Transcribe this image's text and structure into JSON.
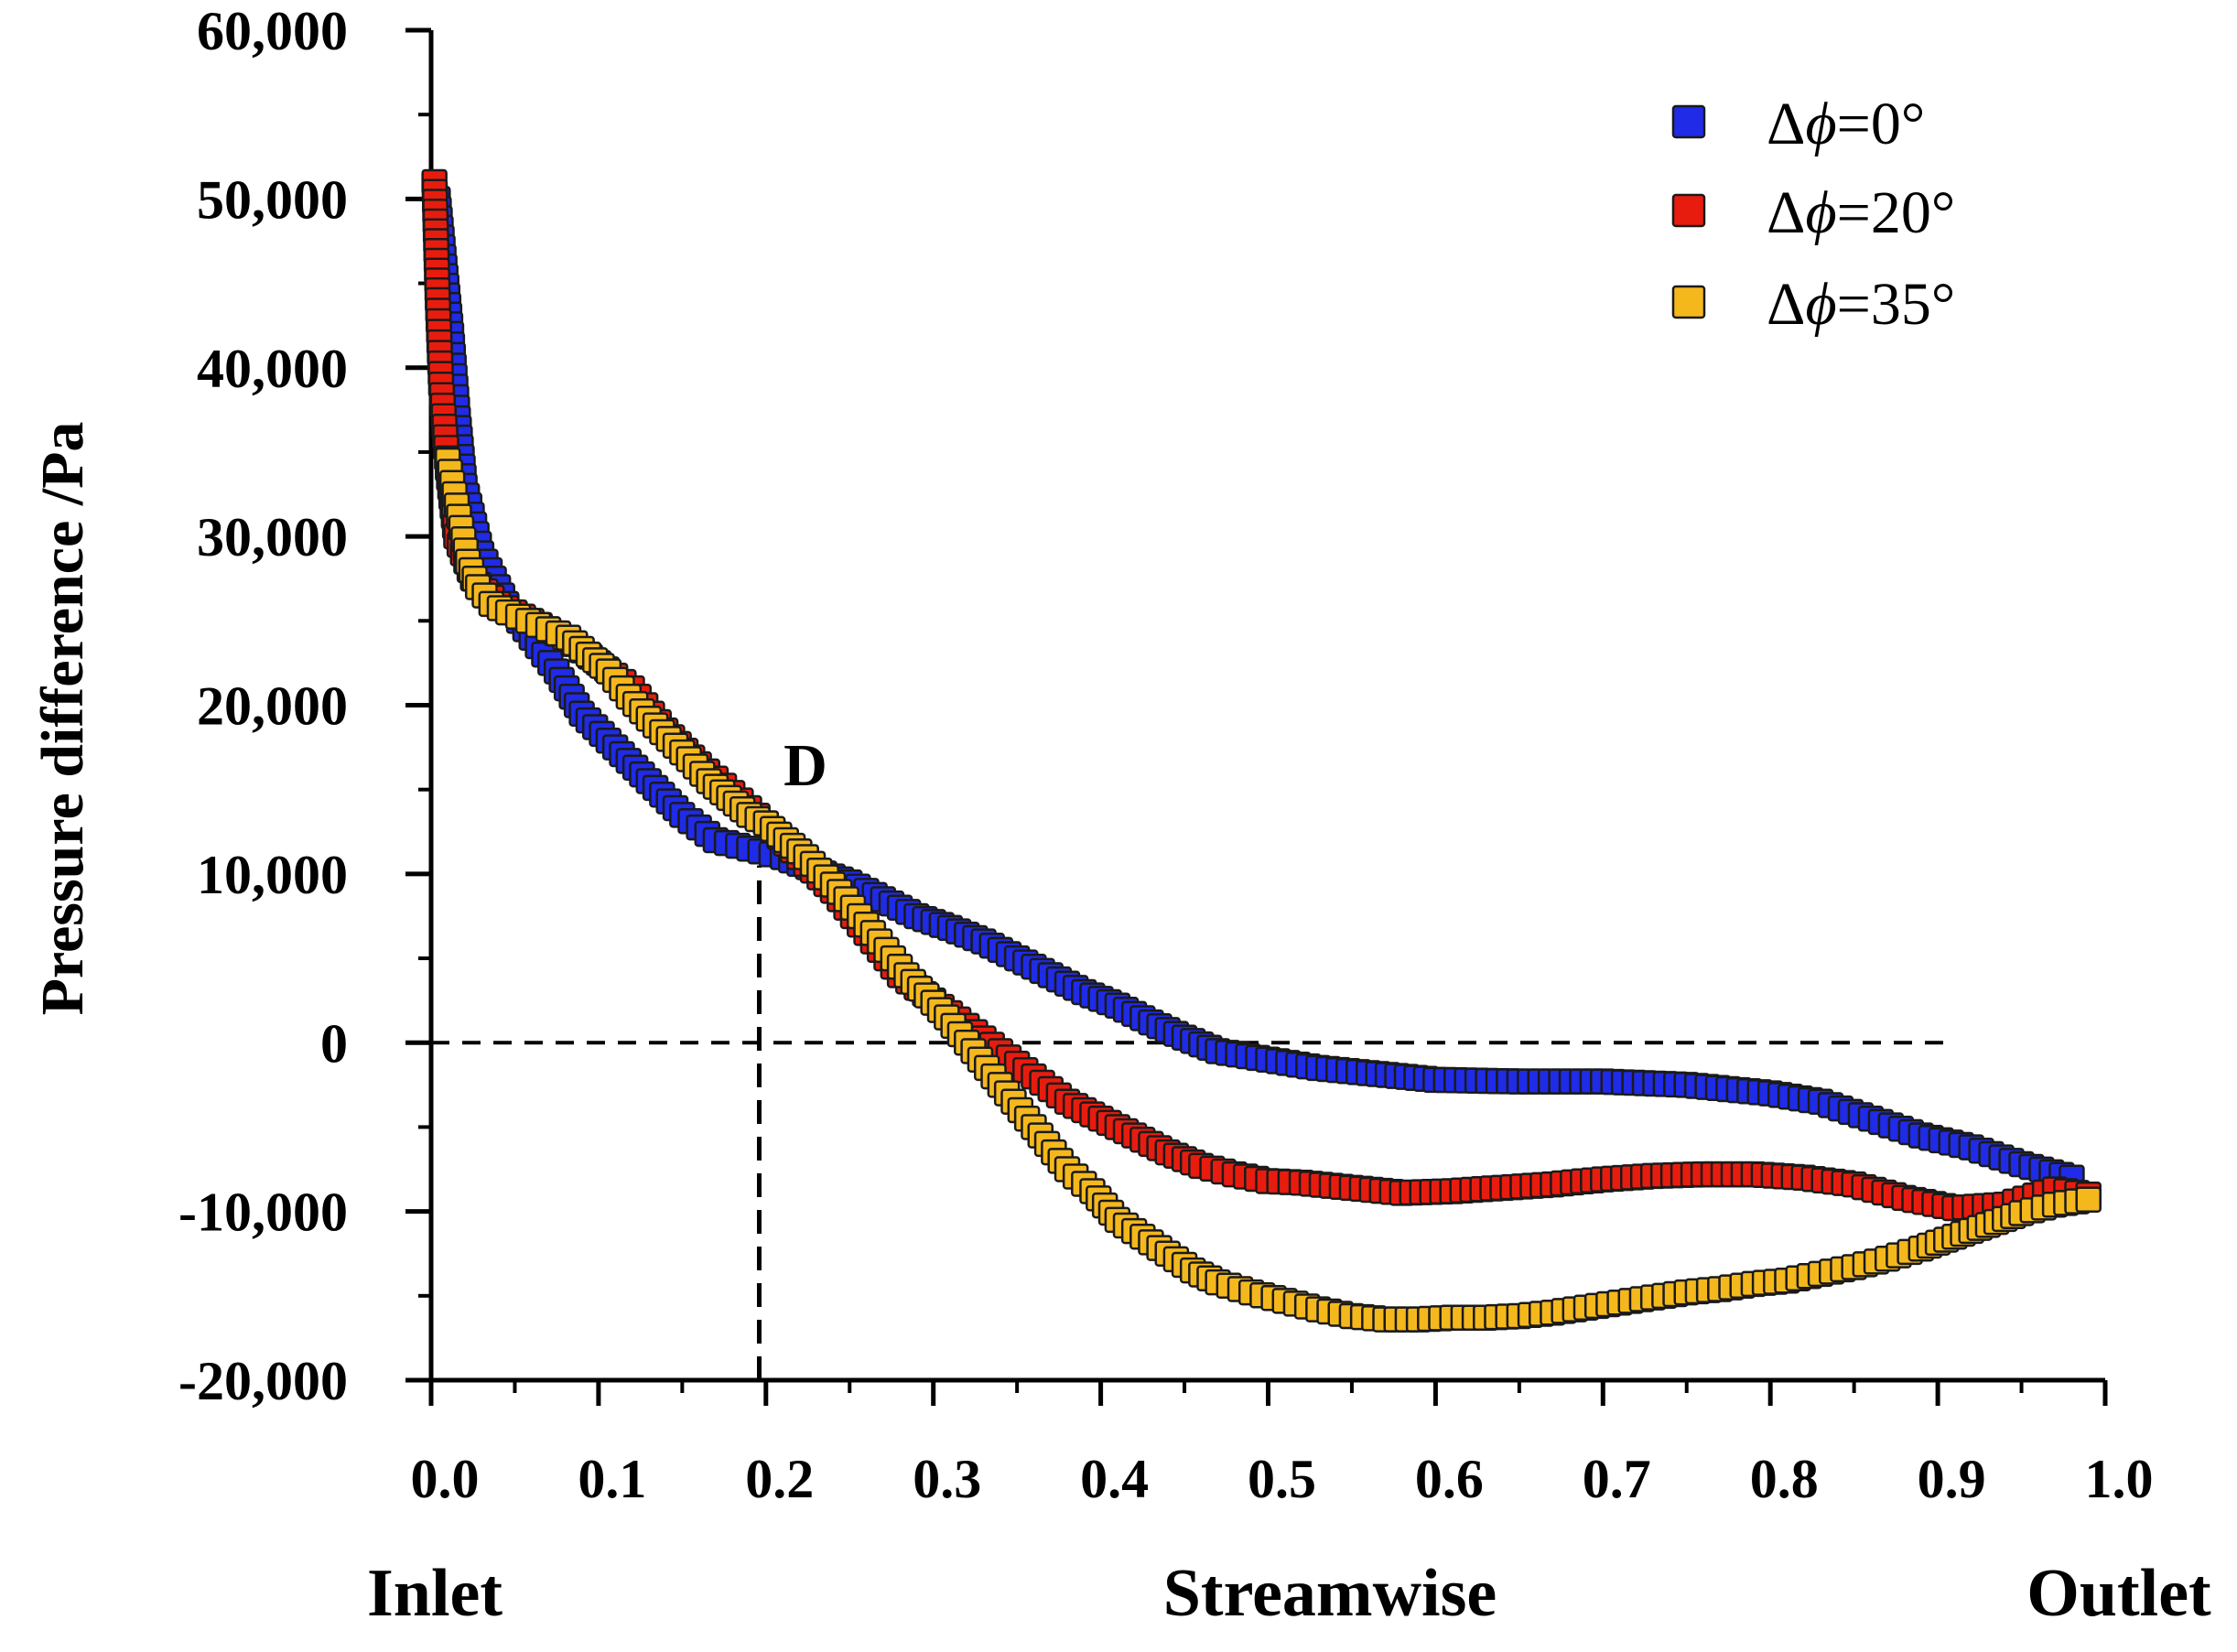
{
  "chart_data": {
    "type": "scatter",
    "title": "",
    "ylabel": "Pressure difference /Pa",
    "xlabel": "Streamwise",
    "x_start_label": "Inlet",
    "x_end_label": "Outlet",
    "xlim": [
      0,
      1.0
    ],
    "ylim": [
      -20000,
      60000
    ],
    "x_ticks": [
      0.0,
      0.1,
      0.2,
      0.3,
      0.4,
      0.5,
      0.6,
      0.7,
      0.8,
      0.9,
      1.0
    ],
    "x_tick_labels": [
      "0.0",
      "0.1",
      "0.2",
      "0.3",
      "0.4",
      "0.5",
      "0.6",
      "0.7",
      "0.8",
      "0.9",
      "1.0"
    ],
    "y_ticks": [
      -20000,
      -10000,
      0,
      10000,
      20000,
      30000,
      40000,
      50000,
      60000
    ],
    "y_tick_labels": [
      "-20,000",
      "-10,000",
      "0",
      "10,000",
      "20,000",
      "30,000",
      "40,000",
      "50,000",
      "60,000"
    ],
    "grid": false,
    "legend_position": "top-right",
    "annotations": [
      {
        "text": "D",
        "x": 0.22,
        "y": 16000
      }
    ],
    "reference_lines": [
      {
        "type": "horizontal",
        "y": 0,
        "x_from": 0.0,
        "x_to": 0.91,
        "style": "dashed"
      },
      {
        "type": "vertical",
        "x": 0.196,
        "y_from": -20000,
        "y_to": 10500,
        "style": "dashed"
      }
    ],
    "series": [
      {
        "name": "Δϕ=0°",
        "legend_prefix": "Δ",
        "legend_symbol": "ϕ",
        "legend_suffix": "=0°",
        "color": "#1f2be6",
        "points": [
          [
            0.004,
            50000
          ],
          [
            0.008,
            46000
          ],
          [
            0.012,
            42000
          ],
          [
            0.016,
            37000
          ],
          [
            0.02,
            33000
          ],
          [
            0.03,
            29000
          ],
          [
            0.045,
            26000
          ],
          [
            0.06,
            24000
          ],
          [
            0.075,
            22000
          ],
          [
            0.09,
            19500
          ],
          [
            0.11,
            17500
          ],
          [
            0.13,
            15500
          ],
          [
            0.15,
            13500
          ],
          [
            0.17,
            12000
          ],
          [
            0.19,
            11500
          ],
          [
            0.21,
            11000
          ],
          [
            0.23,
            10200
          ],
          [
            0.25,
            9500
          ],
          [
            0.27,
            8500
          ],
          [
            0.29,
            7500
          ],
          [
            0.31,
            6800
          ],
          [
            0.33,
            6000
          ],
          [
            0.35,
            5000
          ],
          [
            0.37,
            4000
          ],
          [
            0.39,
            3000
          ],
          [
            0.41,
            2200
          ],
          [
            0.43,
            1200
          ],
          [
            0.45,
            300
          ],
          [
            0.47,
            -500
          ],
          [
            0.5,
            -1000
          ],
          [
            0.53,
            -1500
          ],
          [
            0.56,
            -1800
          ],
          [
            0.6,
            -2200
          ],
          [
            0.65,
            -2300
          ],
          [
            0.7,
            -2300
          ],
          [
            0.75,
            -2500
          ],
          [
            0.8,
            -3000
          ],
          [
            0.83,
            -3500
          ],
          [
            0.86,
            -4500
          ],
          [
            0.89,
            -5500
          ],
          [
            0.92,
            -6200
          ],
          [
            0.95,
            -7200
          ],
          [
            0.98,
            -8000
          ]
        ]
      },
      {
        "name": "Δϕ=20°",
        "legend_prefix": "Δ",
        "legend_symbol": "ϕ",
        "legend_suffix": "=20°",
        "color": "#e81c0e",
        "points": [
          [
            0.002,
            51000
          ],
          [
            0.004,
            44000
          ],
          [
            0.006,
            39000
          ],
          [
            0.01,
            34000
          ],
          [
            0.015,
            30000
          ],
          [
            0.025,
            27500
          ],
          [
            0.04,
            26000
          ],
          [
            0.06,
            25000
          ],
          [
            0.08,
            24000
          ],
          [
            0.1,
            22500
          ],
          [
            0.12,
            21000
          ],
          [
            0.14,
            18500
          ],
          [
            0.16,
            16500
          ],
          [
            0.18,
            14800
          ],
          [
            0.2,
            13000
          ],
          [
            0.22,
            11000
          ],
          [
            0.24,
            9000
          ],
          [
            0.26,
            6500
          ],
          [
            0.28,
            4000
          ],
          [
            0.3,
            2500
          ],
          [
            0.32,
            1000
          ],
          [
            0.34,
            -500
          ],
          [
            0.36,
            -2000
          ],
          [
            0.38,
            -3500
          ],
          [
            0.4,
            -4500
          ],
          [
            0.42,
            -5500
          ],
          [
            0.44,
            -6500
          ],
          [
            0.46,
            -7300
          ],
          [
            0.48,
            -7800
          ],
          [
            0.5,
            -8200
          ],
          [
            0.52,
            -8300
          ],
          [
            0.55,
            -8600
          ],
          [
            0.58,
            -8900
          ],
          [
            0.61,
            -8800
          ],
          [
            0.64,
            -8600
          ],
          [
            0.67,
            -8400
          ],
          [
            0.7,
            -8100
          ],
          [
            0.73,
            -7900
          ],
          [
            0.76,
            -7800
          ],
          [
            0.79,
            -7800
          ],
          [
            0.82,
            -8000
          ],
          [
            0.85,
            -8400
          ],
          [
            0.88,
            -9200
          ],
          [
            0.91,
            -9800
          ],
          [
            0.94,
            -9600
          ],
          [
            0.97,
            -8700
          ],
          [
            0.99,
            -9000
          ]
        ]
      },
      {
        "name": "Δϕ=35°",
        "legend_prefix": "Δ",
        "legend_symbol": "ϕ",
        "legend_suffix": "=35°",
        "color": "#f5b81c",
        "points": [
          [
            0.01,
            34500
          ],
          [
            0.014,
            32500
          ],
          [
            0.018,
            30500
          ],
          [
            0.022,
            28500
          ],
          [
            0.028,
            27000
          ],
          [
            0.036,
            26000
          ],
          [
            0.046,
            25500
          ],
          [
            0.058,
            25000
          ],
          [
            0.07,
            24500
          ],
          [
            0.082,
            24000
          ],
          [
            0.094,
            23000
          ],
          [
            0.106,
            22000
          ],
          [
            0.118,
            20500
          ],
          [
            0.13,
            19200
          ],
          [
            0.142,
            18000
          ],
          [
            0.154,
            16800
          ],
          [
            0.166,
            15500
          ],
          [
            0.178,
            14500
          ],
          [
            0.19,
            13500
          ],
          [
            0.2,
            13000
          ],
          [
            0.212,
            12000
          ],
          [
            0.224,
            11000
          ],
          [
            0.236,
            9800
          ],
          [
            0.248,
            8500
          ],
          [
            0.26,
            7000
          ],
          [
            0.272,
            5500
          ],
          [
            0.284,
            4000
          ],
          [
            0.296,
            2800
          ],
          [
            0.308,
            1500
          ],
          [
            0.32,
            0
          ],
          [
            0.332,
            -1500
          ],
          [
            0.344,
            -3000
          ],
          [
            0.356,
            -4500
          ],
          [
            0.368,
            -6000
          ],
          [
            0.38,
            -7500
          ],
          [
            0.395,
            -8800
          ],
          [
            0.41,
            -10500
          ],
          [
            0.425,
            -11500
          ],
          [
            0.44,
            -12500
          ],
          [
            0.455,
            -13500
          ],
          [
            0.47,
            -14200
          ],
          [
            0.49,
            -14800
          ],
          [
            0.51,
            -15300
          ],
          [
            0.53,
            -15800
          ],
          [
            0.55,
            -16200
          ],
          [
            0.57,
            -16400
          ],
          [
            0.59,
            -16400
          ],
          [
            0.61,
            -16300
          ],
          [
            0.63,
            -16300
          ],
          [
            0.65,
            -16200
          ],
          [
            0.67,
            -16000
          ],
          [
            0.69,
            -15700
          ],
          [
            0.71,
            -15400
          ],
          [
            0.73,
            -15100
          ],
          [
            0.75,
            -14800
          ],
          [
            0.77,
            -14600
          ],
          [
            0.79,
            -14300
          ],
          [
            0.81,
            -14100
          ],
          [
            0.83,
            -13700
          ],
          [
            0.85,
            -13300
          ],
          [
            0.87,
            -12800
          ],
          [
            0.89,
            -12200
          ],
          [
            0.91,
            -11500
          ],
          [
            0.93,
            -10800
          ],
          [
            0.95,
            -10100
          ],
          [
            0.97,
            -9600
          ],
          [
            0.99,
            -9300
          ]
        ]
      }
    ]
  }
}
